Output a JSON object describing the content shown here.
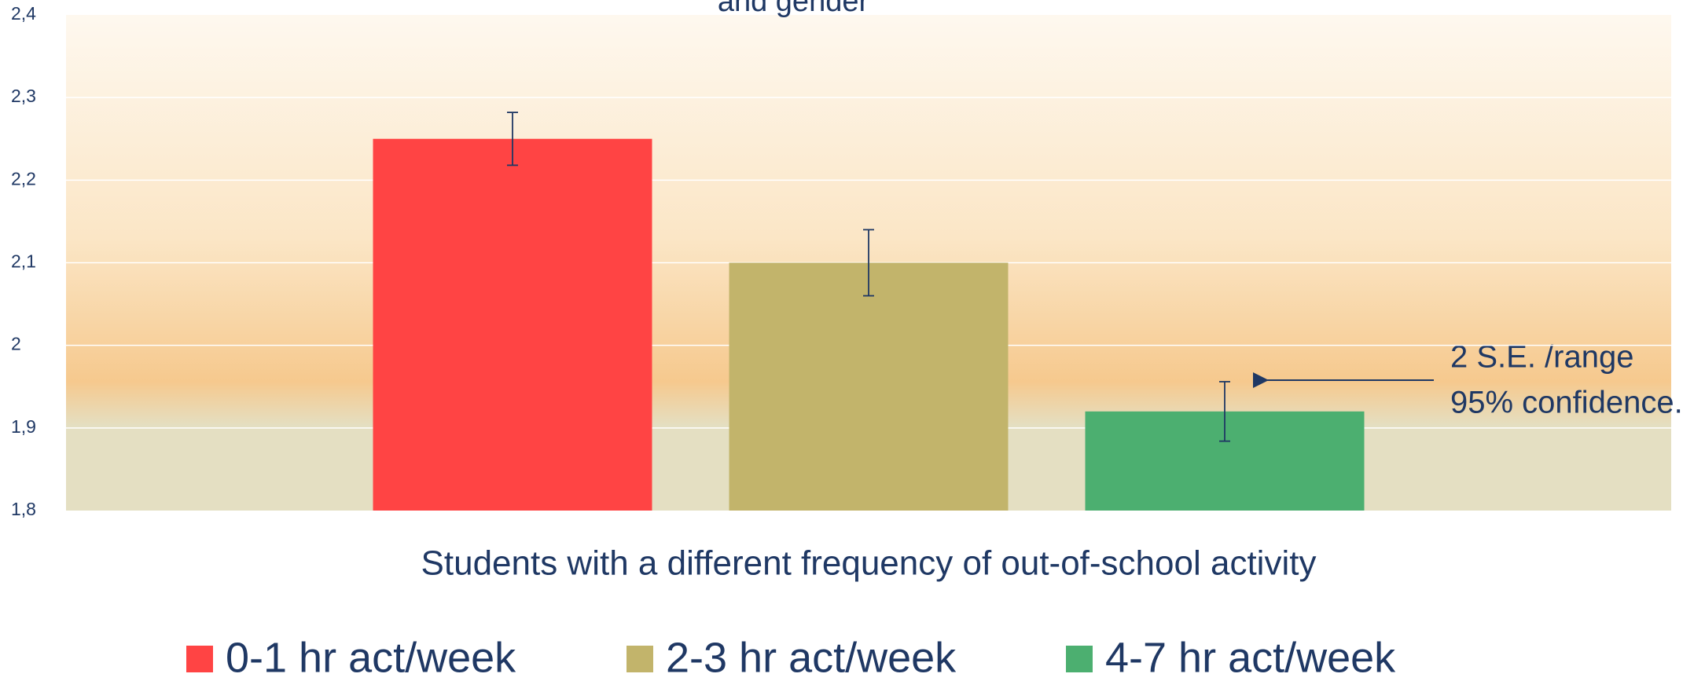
{
  "chart_data": {
    "type": "bar",
    "title": "and gender",
    "xlabel": "Students with a different frequency of out-of-school activity",
    "annotations": [
      "2 S.E. /range",
      "95% confidence."
    ],
    "series": [
      {
        "name": "0-1 hr act/week",
        "color": "#ff4444",
        "values": [
          2.25
        ],
        "errors": [
          0.032
        ]
      },
      {
        "name": "2-3 hr act/week",
        "color": "#c2b46b",
        "values": [
          2.1
        ],
        "errors": [
          0.04
        ]
      },
      {
        "name": "4-7 hr act/week",
        "color": "#4caf70",
        "values": [
          1.92
        ],
        "errors": [
          0.036
        ]
      }
    ],
    "ylim": [
      1.8,
      2.4
    ],
    "yticks": [
      {
        "value": 1.8,
        "label": "1,8"
      },
      {
        "value": 1.9,
        "label": "1,9"
      },
      2,
      {
        "value": 2.1,
        "label": "2,1"
      },
      {
        "value": 2.2,
        "label": "2,2"
      },
      {
        "value": 2.3,
        "label": "2,3"
      },
      {
        "value": 2.4,
        "label": "2,4"
      }
    ],
    "grid": true,
    "legend": "bottom"
  }
}
